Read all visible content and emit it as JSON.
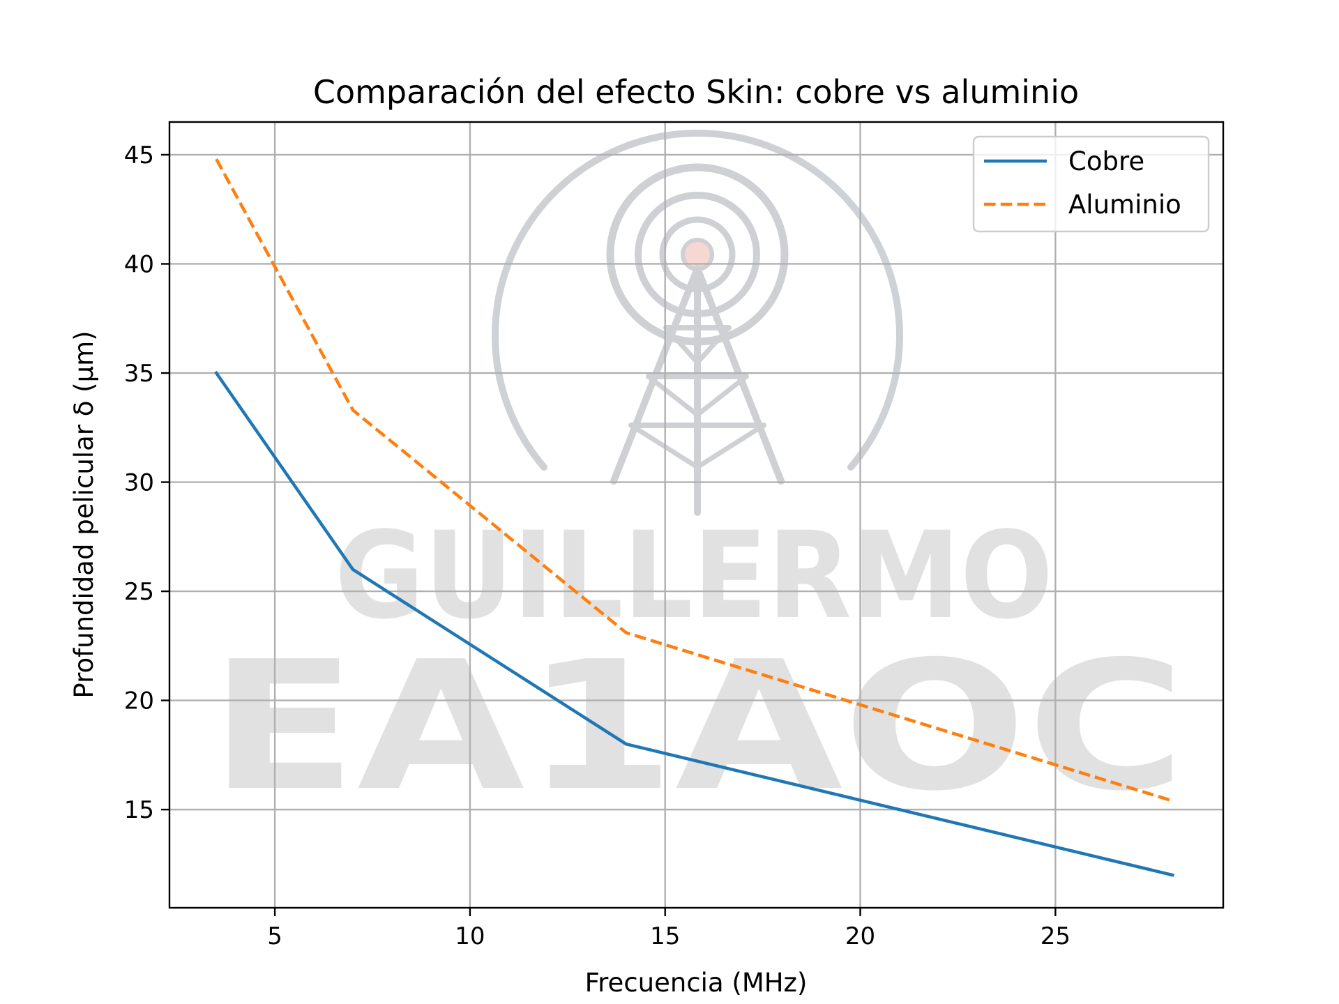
{
  "chart_data": {
    "type": "line",
    "title": "Comparación del efecto Skin: cobre vs aluminio",
    "xlabel": "Frecuencia (MHz)",
    "ylabel": "Profundidad pelicular δ (μm)",
    "xlim": [
      2.3,
      29.3
    ],
    "ylim": [
      10.5,
      46.5
    ],
    "xticks": [
      5,
      10,
      15,
      20,
      25
    ],
    "yticks": [
      15,
      20,
      25,
      30,
      35,
      40,
      45
    ],
    "grid": true,
    "legend_position": "top-right",
    "series": [
      {
        "name": "Cobre",
        "color": "#1f77b4",
        "style": "solid",
        "x": [
          3.5,
          7,
          14,
          28
        ],
        "y": [
          35.0,
          26.0,
          18.0,
          12.0
        ]
      },
      {
        "name": "Aluminio",
        "color": "#ff7f0e",
        "style": "dashed",
        "x": [
          3.5,
          7,
          14,
          28
        ],
        "y": [
          44.8,
          33.3,
          23.1,
          15.4
        ]
      }
    ]
  },
  "watermark": {
    "line1": "GUILLERMO",
    "line2": "EA1AOC",
    "icon": "radio-tower-icon"
  }
}
